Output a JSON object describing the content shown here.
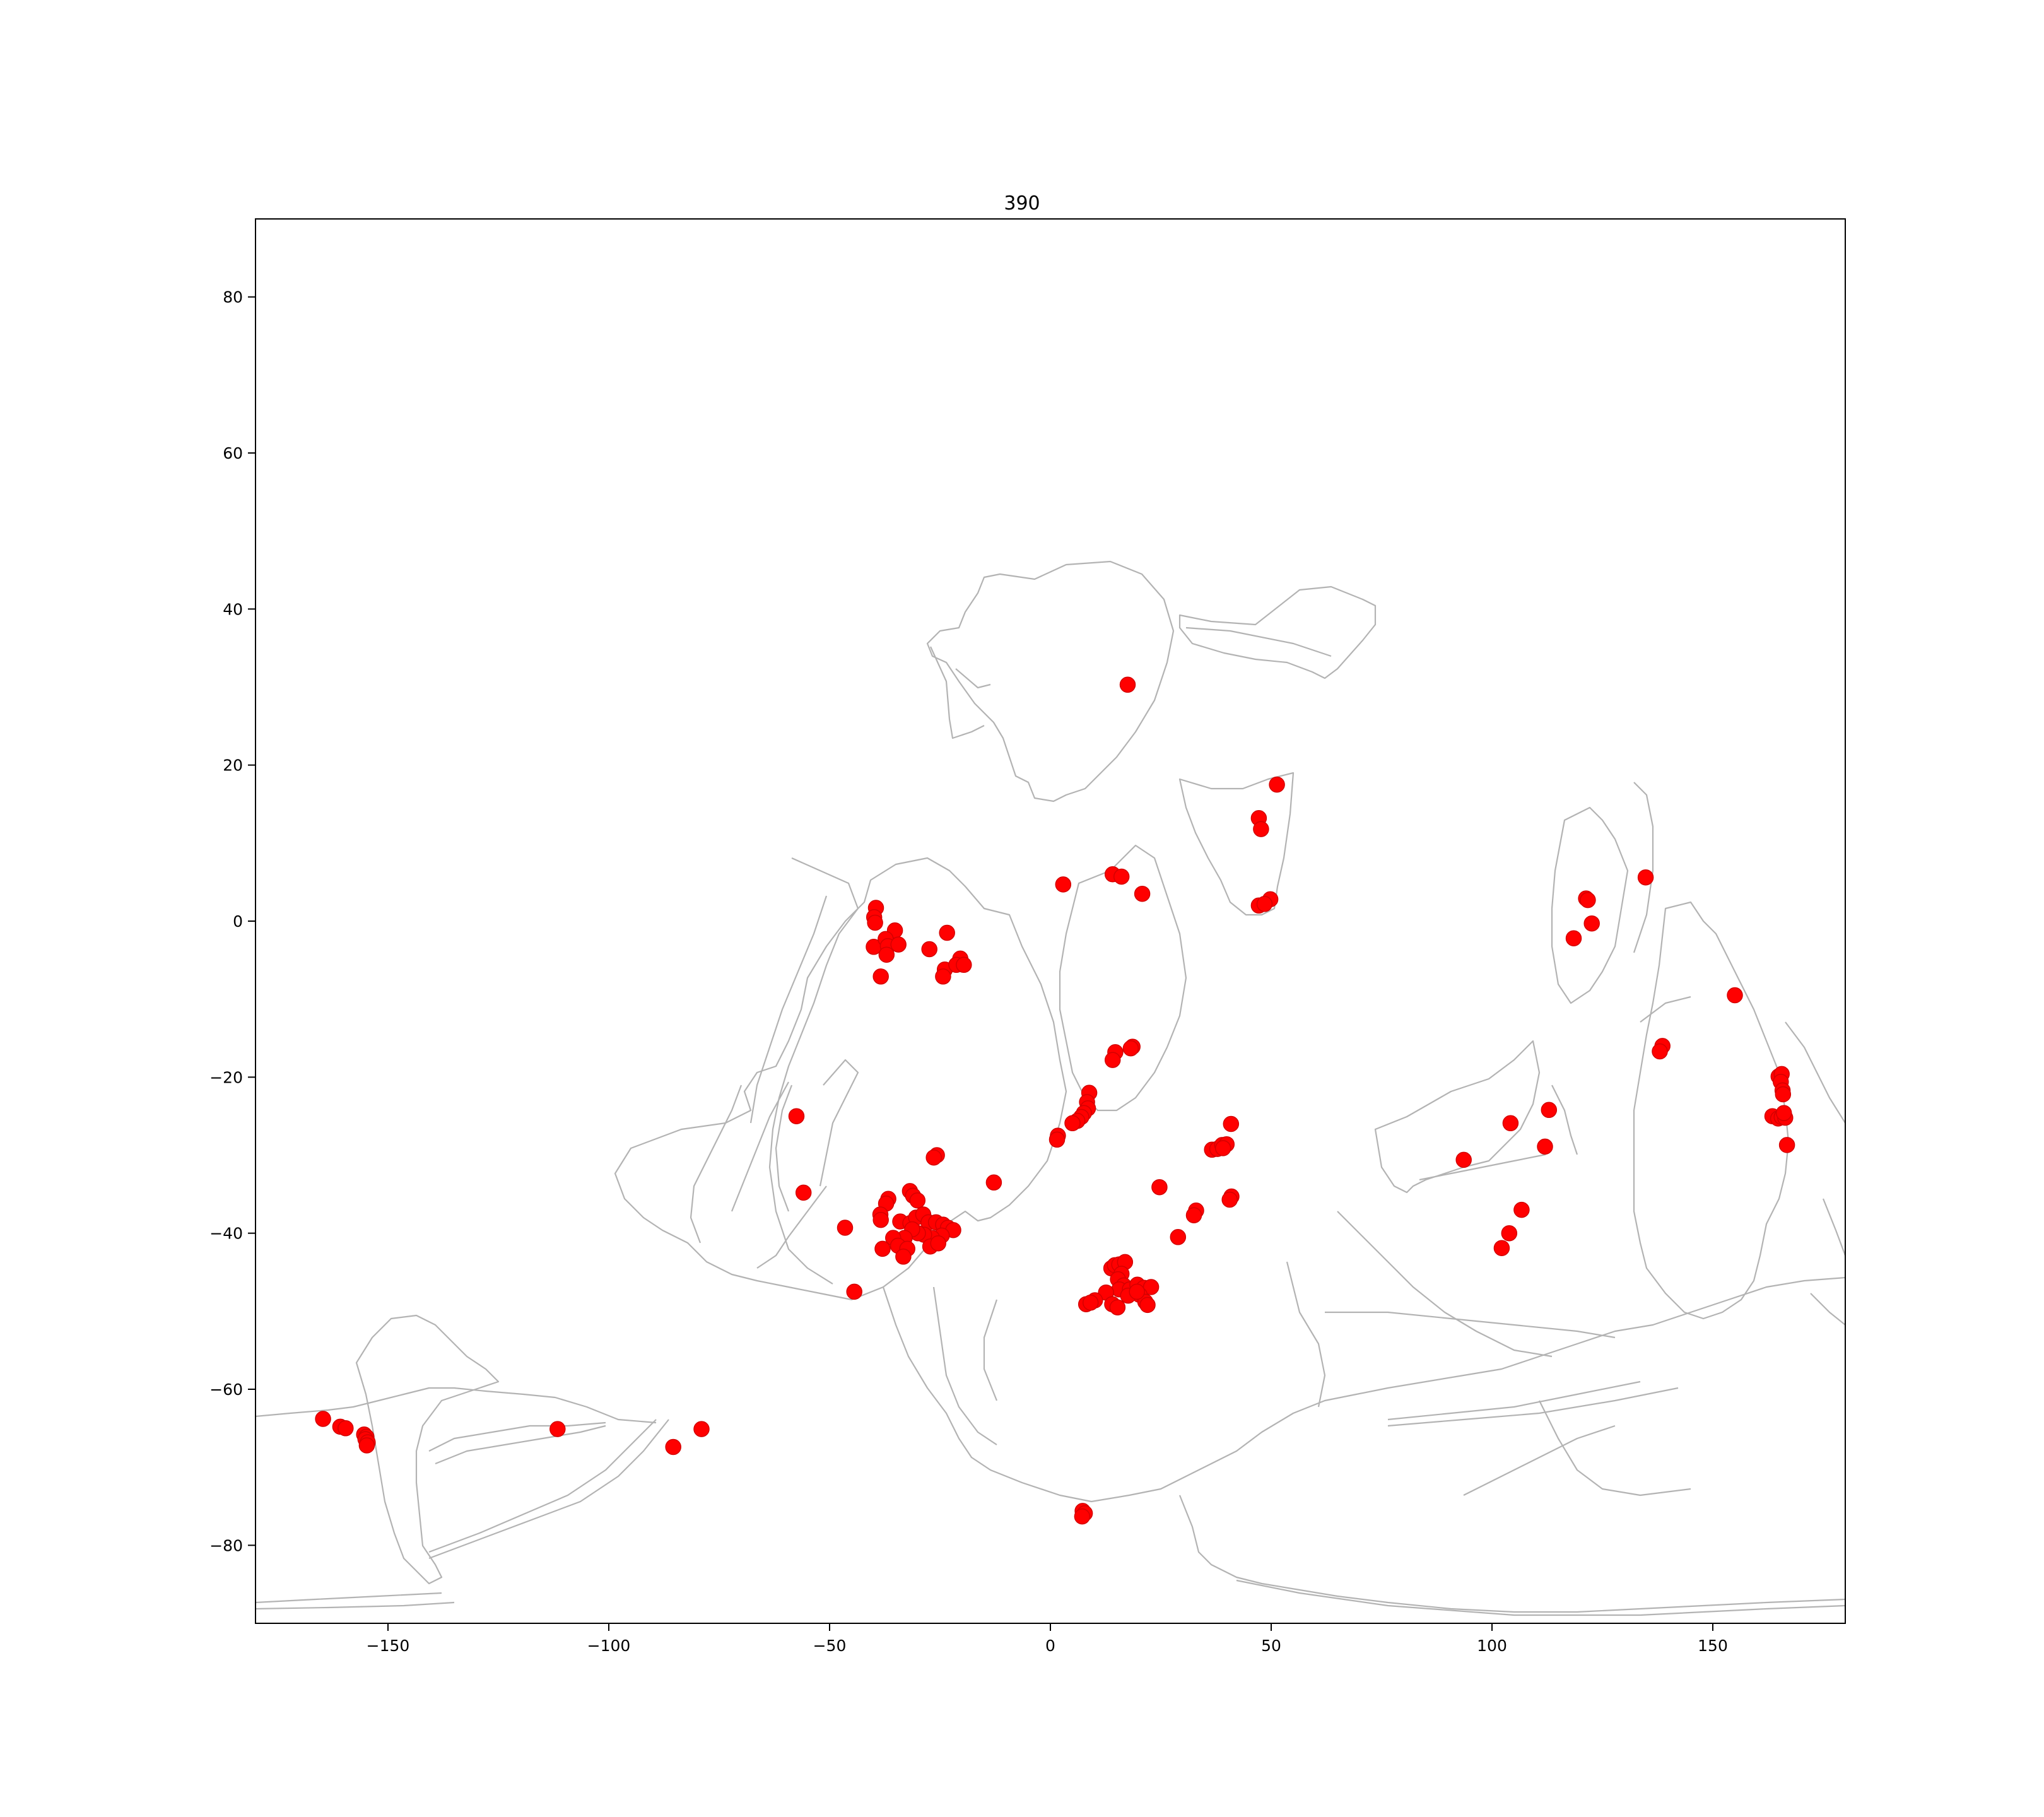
{
  "chart_data": {
    "type": "scatter",
    "title": "390",
    "xlabel": "",
    "ylabel": "",
    "xlim": [
      -180,
      180
    ],
    "ylim": [
      -90,
      90
    ],
    "xticks": [
      -150,
      -100,
      -50,
      0,
      50,
      100,
      150
    ],
    "yticks": [
      -80,
      -60,
      -40,
      -20,
      0,
      20,
      40,
      60,
      80
    ],
    "xtick_labels": [
      "−150",
      "−100",
      "−50",
      "0",
      "50",
      "100",
      "150"
    ],
    "ytick_labels": [
      "−80",
      "−60",
      "−40",
      "−20",
      "0",
      "20",
      "40",
      "60",
      "80"
    ],
    "grid": false,
    "marker_color": "#ff0000",
    "outline_color": "#b3b3b3",
    "points": [
      [
        17.5,
        30.3
      ],
      [
        51.3,
        17.5
      ],
      [
        47.2,
        13.2
      ],
      [
        47.7,
        11.8
      ],
      [
        49.8,
        2.8
      ],
      [
        47.2,
        2.0
      ],
      [
        48.5,
        2.2
      ],
      [
        14.1,
        6.0
      ],
      [
        16.1,
        5.7
      ],
      [
        20.8,
        3.5
      ],
      [
        2.9,
        4.7
      ],
      [
        -39.5,
        1.7
      ],
      [
        -39.9,
        0.5
      ],
      [
        -39.7,
        -0.2
      ],
      [
        -40.0,
        -3.3
      ],
      [
        -35.2,
        -1.2
      ],
      [
        -37.3,
        -2.3
      ],
      [
        -36.8,
        -3.2
      ],
      [
        -37.1,
        -4.3
      ],
      [
        -34.4,
        -3.0
      ],
      [
        -38.4,
        -7.1
      ],
      [
        -27.4,
        -3.6
      ],
      [
        -23.4,
        -1.5
      ],
      [
        -23.9,
        -6.2
      ],
      [
        -24.3,
        -7.1
      ],
      [
        -20.4,
        -4.8
      ],
      [
        -21.3,
        -5.6
      ],
      [
        -19.6,
        -5.6
      ],
      [
        -57.5,
        -25.0
      ],
      [
        -55.9,
        -34.8
      ],
      [
        -46.5,
        -39.3
      ],
      [
        -44.4,
        -47.5
      ],
      [
        14.7,
        -16.8
      ],
      [
        14.1,
        -17.8
      ],
      [
        18.6,
        -16.1
      ],
      [
        18.2,
        -16.3
      ],
      [
        8.8,
        -22.0
      ],
      [
        8.3,
        -23.2
      ],
      [
        8.5,
        -24.0
      ],
      [
        7.6,
        -24.6
      ],
      [
        7.0,
        -25.1
      ],
      [
        6.1,
        -25.6
      ],
      [
        5.0,
        -25.9
      ],
      [
        1.7,
        -27.5
      ],
      [
        1.5,
        -28.0
      ],
      [
        -25.7,
        -30.0
      ],
      [
        -26.4,
        -30.3
      ],
      [
        -12.8,
        -33.5
      ],
      [
        -31.8,
        -34.6
      ],
      [
        -31.1,
        -35.2
      ],
      [
        -30.1,
        -35.8
      ],
      [
        -36.7,
        -35.6
      ],
      [
        -37.2,
        -36.2
      ],
      [
        -38.5,
        -37.6
      ],
      [
        -38.4,
        -38.3
      ],
      [
        -34.0,
        -38.5
      ],
      [
        -31.7,
        -38.7
      ],
      [
        -30.4,
        -38.0
      ],
      [
        -28.8,
        -37.6
      ],
      [
        -27.6,
        -38.6
      ],
      [
        -25.9,
        -38.6
      ],
      [
        -24.3,
        -38.9
      ],
      [
        -23.2,
        -39.3
      ],
      [
        -22.0,
        -39.6
      ],
      [
        -24.6,
        -40.3
      ],
      [
        -26.8,
        -40.6
      ],
      [
        -28.6,
        -40.2
      ],
      [
        -30.0,
        -40.0
      ],
      [
        -31.3,
        -39.5
      ],
      [
        -33.0,
        -40.6
      ],
      [
        -35.6,
        -40.6
      ],
      [
        -34.5,
        -41.6
      ],
      [
        -32.4,
        -42.0
      ],
      [
        -27.2,
        -41.7
      ],
      [
        -25.4,
        -41.3
      ],
      [
        -38.0,
        -42.0
      ],
      [
        -33.3,
        -43.0
      ],
      [
        24.7,
        -34.1
      ],
      [
        28.9,
        -40.5
      ],
      [
        33.0,
        -37.1
      ],
      [
        32.5,
        -37.7
      ],
      [
        36.6,
        -29.3
      ],
      [
        37.8,
        -29.2
      ],
      [
        38.9,
        -28.7
      ],
      [
        39.9,
        -28.6
      ],
      [
        39.1,
        -29.1
      ],
      [
        40.9,
        -26.0
      ],
      [
        41.0,
        -35.3
      ],
      [
        40.6,
        -35.7
      ],
      [
        13.8,
        -44.5
      ],
      [
        14.6,
        -44.1
      ],
      [
        15.6,
        -44.0
      ],
      [
        16.9,
        -43.7
      ],
      [
        16.1,
        -45.2
      ],
      [
        15.3,
        -45.9
      ],
      [
        16.6,
        -46.7
      ],
      [
        15.6,
        -47.2
      ],
      [
        18.0,
        -47.2
      ],
      [
        19.7,
        -46.6
      ],
      [
        21.2,
        -47.0
      ],
      [
        22.8,
        -46.9
      ],
      [
        20.2,
        -47.9
      ],
      [
        17.6,
        -48.0
      ],
      [
        12.6,
        -47.6
      ],
      [
        14.0,
        -49.1
      ],
      [
        15.2,
        -49.5
      ],
      [
        10.1,
        -48.6
      ],
      [
        8.1,
        -49.1
      ],
      [
        9.1,
        -48.9
      ],
      [
        21.5,
        -48.8
      ],
      [
        22.0,
        -49.2
      ],
      [
        19.6,
        -47.5
      ],
      [
        7.3,
        -75.6
      ],
      [
        7.8,
        -75.9
      ],
      [
        7.2,
        -76.3
      ],
      [
        -164.7,
        -63.8
      ],
      [
        -160.8,
        -64.8
      ],
      [
        -159.6,
        -65.0
      ],
      [
        -155.4,
        -65.8
      ],
      [
        -154.9,
        -66.1
      ],
      [
        -155.1,
        -66.4
      ],
      [
        -154.6,
        -66.8
      ],
      [
        -154.8,
        -67.2
      ],
      [
        -111.6,
        -65.1
      ],
      [
        -85.4,
        -67.4
      ],
      [
        -79.0,
        -65.1
      ],
      [
        93.6,
        -30.6
      ],
      [
        104.2,
        -25.9
      ],
      [
        112.9,
        -24.2
      ],
      [
        112.0,
        -28.9
      ],
      [
        106.7,
        -37.0
      ],
      [
        103.9,
        -40.0
      ],
      [
        102.2,
        -41.9
      ],
      [
        121.3,
        2.9
      ],
      [
        121.7,
        2.7
      ],
      [
        122.6,
        -0.3
      ],
      [
        118.5,
        -2.2
      ],
      [
        134.8,
        5.6
      ],
      [
        155.0,
        -9.5
      ],
      [
        138.6,
        -16.0
      ],
      [
        138.0,
        -16.7
      ],
      [
        164.9,
        -19.9
      ],
      [
        165.6,
        -19.6
      ],
      [
        165.4,
        -20.6
      ],
      [
        165.8,
        -21.7
      ],
      [
        165.9,
        -22.2
      ],
      [
        163.5,
        -25.0
      ],
      [
        164.8,
        -25.3
      ],
      [
        165.6,
        -25.1
      ],
      [
        166.4,
        -25.2
      ],
      [
        166.1,
        -24.6
      ],
      [
        166.8,
        -28.7
      ]
    ]
  }
}
